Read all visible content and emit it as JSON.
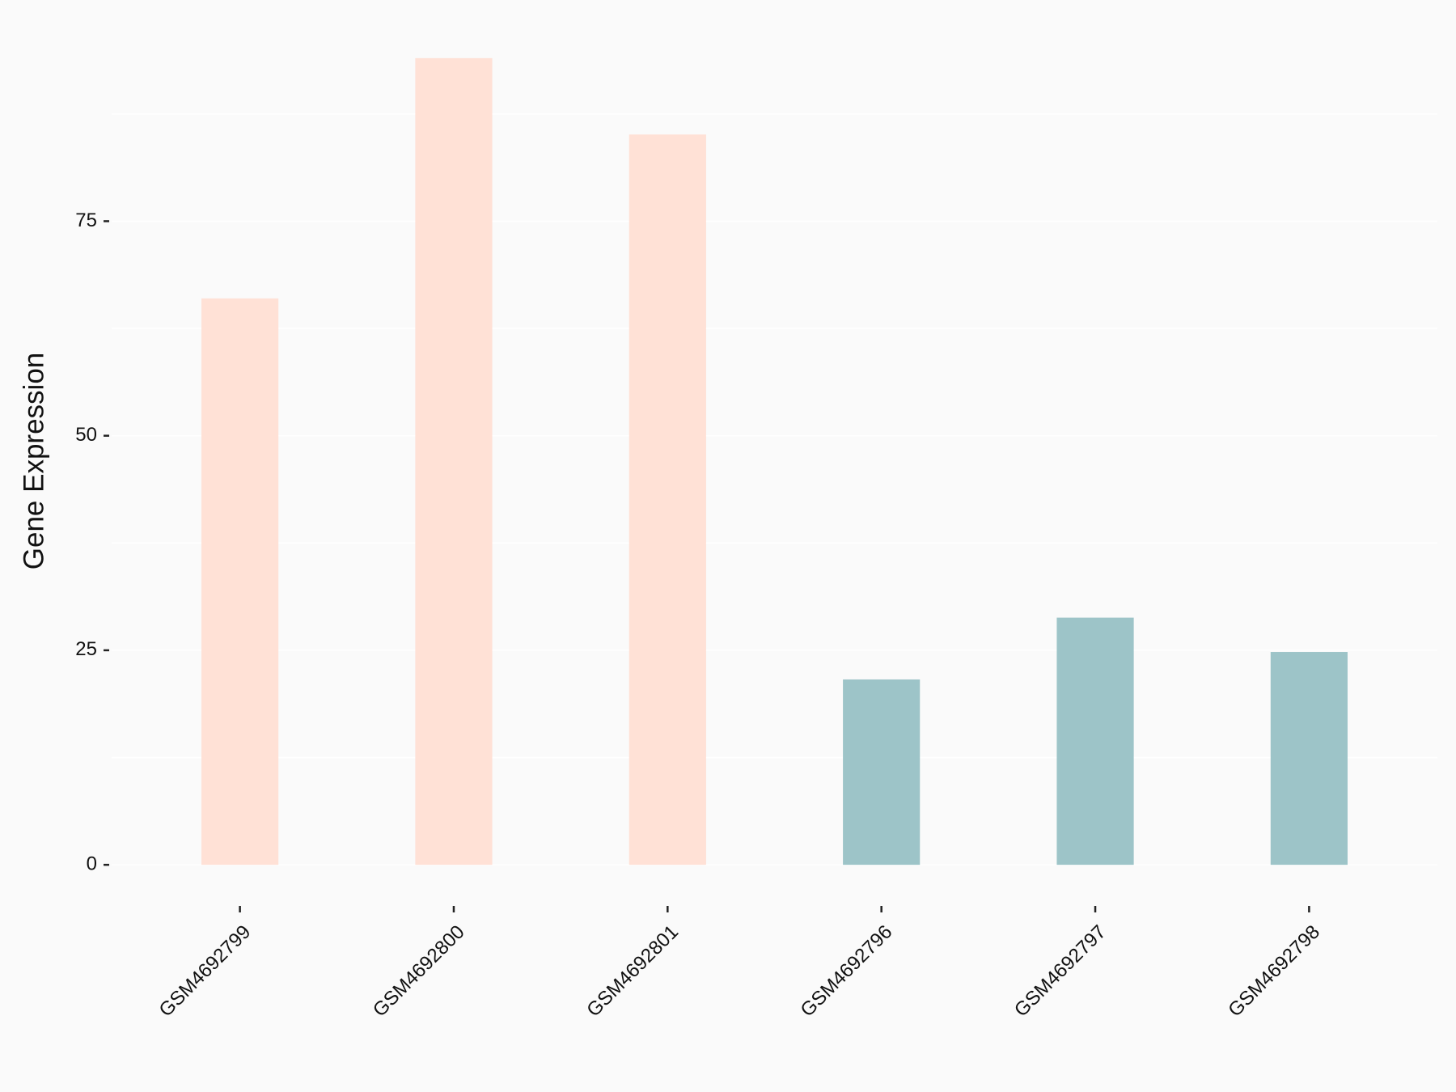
{
  "chart_data": {
    "type": "bar",
    "y_label": "Gene Expression",
    "categories": [
      "GSM4692799",
      "GSM4692800",
      "GSM4692801",
      "GSM4692796",
      "GSM4692797",
      "GSM4692798"
    ],
    "values": [
      66.0,
      94.0,
      85.1,
      21.6,
      28.8,
      24.8
    ],
    "colors": [
      "#FFE1D6",
      "#FFE1D6",
      "#FFE1D6",
      "#9DC4C8",
      "#9DC4C8",
      "#9DC4C8"
    ],
    "ylim": [
      -4.7,
      98.7
    ],
    "yticks": [
      0,
      25,
      50,
      75
    ],
    "y_minor_ticks": [
      12.5,
      37.5,
      62.5,
      87.5
    ],
    "grid": true
  }
}
